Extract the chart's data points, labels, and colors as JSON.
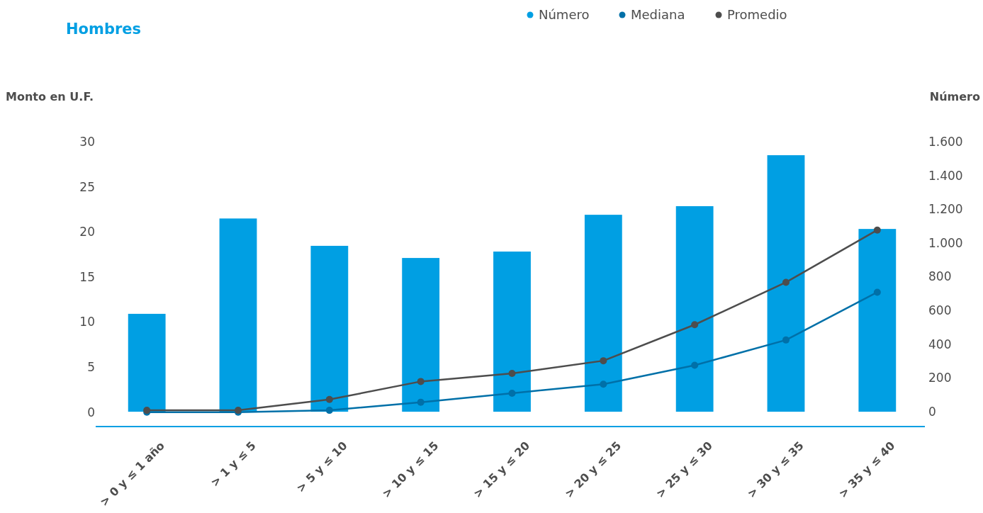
{
  "chart_data": {
    "type": "bar",
    "title": "Hombres",
    "ylabel": "Monto en U.F.",
    "y2label": "Número",
    "categories": [
      "> 0 y ≤ 1 año",
      "> 1 y ≤ 5",
      "> 5 y ≤ 10",
      "> 10 y ≤ 15",
      "> 15 y ≤ 20",
      "> 20 y ≤ 25",
      "> 25 y ≤ 30",
      "> 30 y ≤ 35",
      "> 35 y ≤ 40"
    ],
    "series": [
      {
        "name": "Número",
        "axis": "y2",
        "color": "#009fe3",
        "values": [
          580,
          1145,
          983,
          911,
          949,
          1167,
          1218,
          1520,
          1083
        ]
      },
      {
        "name": "Mediana",
        "type": "line",
        "color": "#0070a8",
        "values": [
          0,
          0,
          0.2,
          1.1,
          2.1,
          3.1,
          5.2,
          8.0,
          13.3
        ]
      },
      {
        "name": "Promedio",
        "type": "line",
        "color": "#4d4d4d",
        "values": [
          0.2,
          0.2,
          1.4,
          3.4,
          4.3,
          5.7,
          9.7,
          14.4,
          20.2
        ]
      }
    ],
    "ylim": [
      -1.6,
      30
    ],
    "yticks": [
      0,
      5,
      10,
      15,
      20,
      25,
      30
    ],
    "y2lim": [
      -88,
      1600
    ],
    "y2ticks": [
      0,
      200,
      400,
      600,
      800,
      {
        "value": 1000,
        "label": "1.000"
      },
      {
        "value": 1200,
        "label": "1.200"
      },
      {
        "value": 1400,
        "label": "1.400"
      },
      {
        "value": 1600,
        "label": "1.600"
      }
    ],
    "legend": "top",
    "marker": "circle",
    "grid": false
  }
}
